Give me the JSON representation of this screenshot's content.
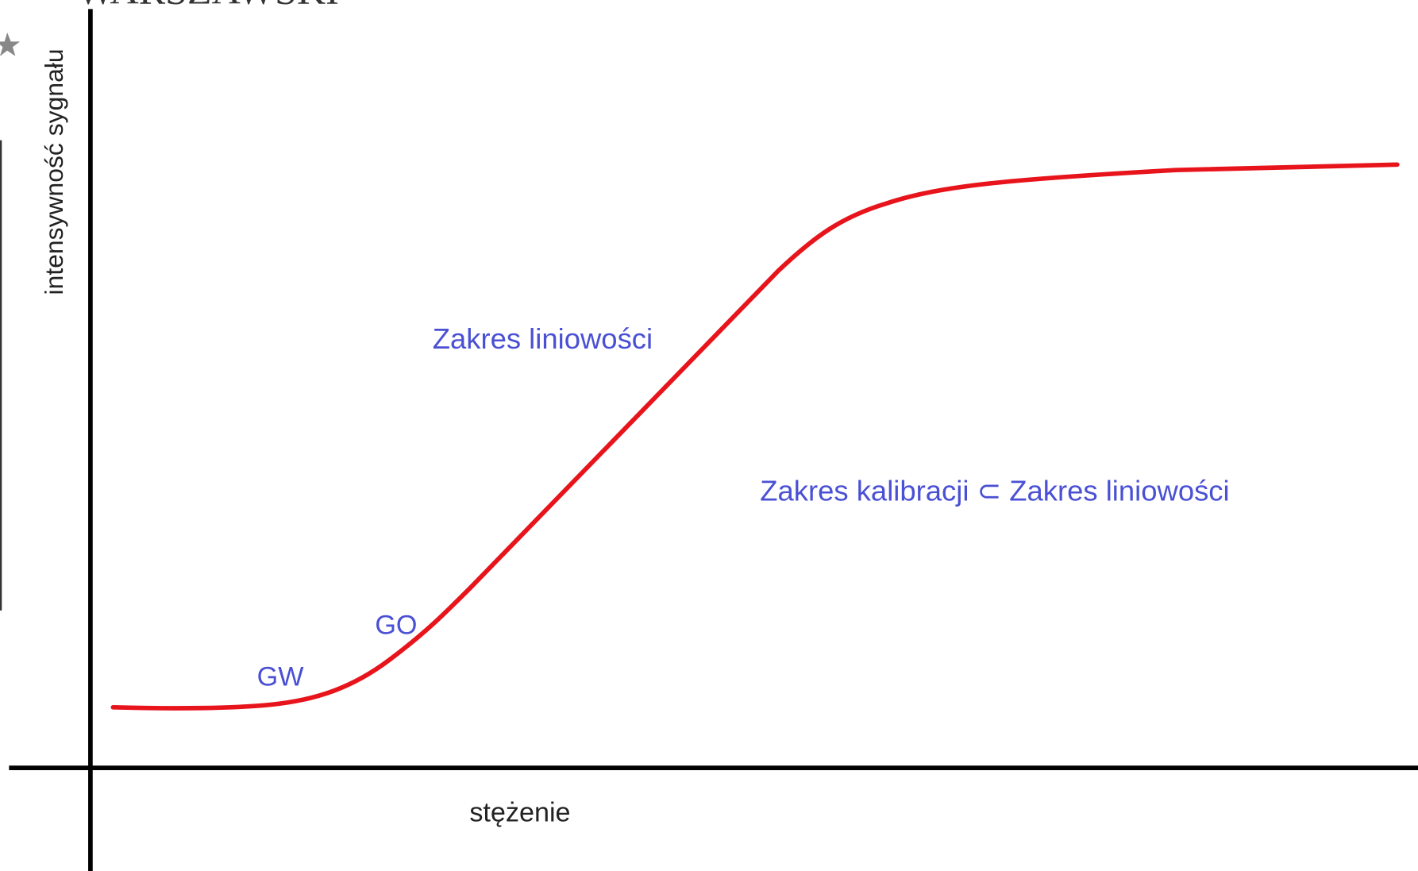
{
  "header": {
    "title": "WARSZAWSKI"
  },
  "axes": {
    "y_label": "intensywność sygnału",
    "x_label": "stężenie"
  },
  "annotations": {
    "linearity": "Zakres liniowości",
    "calibration": "Zakres kalibracji ⊂ Zakres liniowości",
    "go": "GO",
    "gw": "GW"
  }
}
